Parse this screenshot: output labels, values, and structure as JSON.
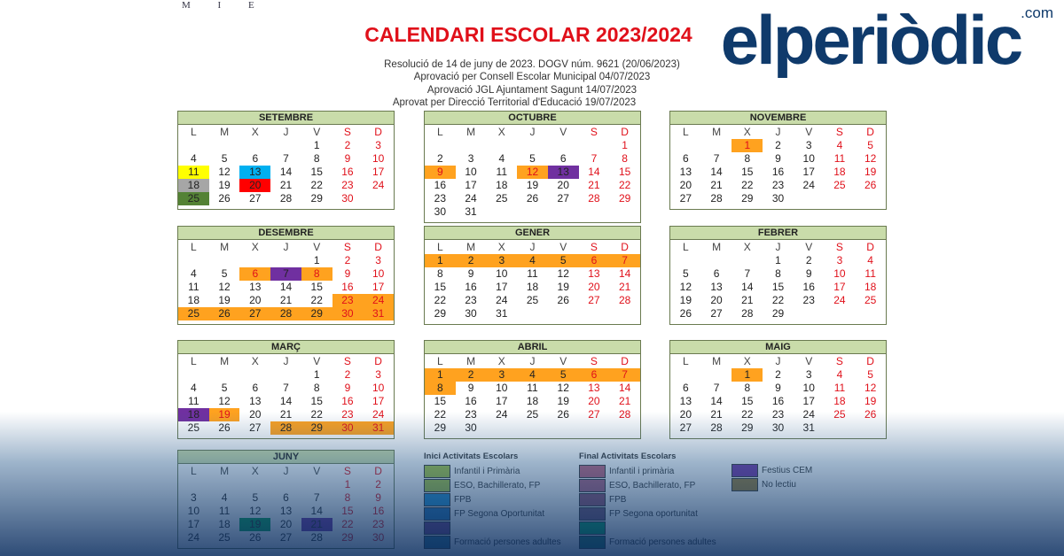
{
  "logo_text": "M I E",
  "title": "CALENDARI ESCOLAR 2023/2024",
  "subtitles": [
    "Resolució de 14 de juny de 2023. DOGV núm. 9621 (20/06/2023)",
    "Aprovació per Consell Escolar Municipal 04/07/2023",
    "Aprovació JGL Ajuntament Sagunt 14/07/2023",
    "Aprovat per  Direcció Territorial d'Educació 19/07/2023"
  ],
  "weekday_letters": [
    "L",
    "M",
    "X",
    "J",
    "V",
    "S",
    "D"
  ],
  "colors": {
    "orange": "#ffa21f",
    "purple": "#7030a0",
    "yellow": "#ffff00",
    "blue": "#00b0f0",
    "gray": "#a6a6a6",
    "red": "#ff0000",
    "green": "#548235",
    "june_green": "#00a050"
  },
  "months": [
    {
      "name": "SETEMBRE",
      "start": 4,
      "days": 30,
      "hl": {
        "11": "yellow",
        "13": "blue",
        "18": "gray",
        "20": "red",
        "25": "green"
      },
      "red": []
    },
    {
      "name": "OCTUBRE",
      "start": 6,
      "days": 31,
      "hl": {
        "9": "orange",
        "12": "orange",
        "13": "purple"
      },
      "red": [
        9,
        12
      ]
    },
    {
      "name": "NOVEMBRE",
      "start": 2,
      "days": 30,
      "hl": {
        "1": "orange"
      },
      "red": [
        1
      ]
    },
    {
      "name": "DESEMBRE",
      "start": 4,
      "days": 31,
      "hl": {
        "6": "orange",
        "7": "purple",
        "8": "orange",
        "23": "orange",
        "24": "orange",
        "25": "orange",
        "26": "orange",
        "27": "orange",
        "28": "orange",
        "29": "orange",
        "30": "orange",
        "31": "orange"
      },
      "red": [
        6,
        8
      ]
    },
    {
      "name": "GENER",
      "start": 0,
      "days": 31,
      "hl": {
        "1": "orange",
        "2": "orange",
        "3": "orange",
        "4": "orange",
        "5": "orange",
        "6": "orange",
        "7": "orange"
      },
      "red": []
    },
    {
      "name": "FEBRER",
      "start": 3,
      "days": 29,
      "hl": {},
      "red": []
    },
    {
      "name": "MARÇ",
      "start": 4,
      "days": 31,
      "hl": {
        "18": "purple",
        "19": "orange",
        "28": "orange",
        "29": "orange",
        "30": "orange",
        "31": "orange"
      },
      "red": [
        19
      ]
    },
    {
      "name": "ABRIL",
      "start": 0,
      "days": 30,
      "hl": {
        "1": "orange",
        "2": "orange",
        "3": "orange",
        "4": "orange",
        "5": "orange",
        "6": "orange",
        "7": "orange",
        "8": "orange"
      },
      "red": []
    },
    {
      "name": "MAIG",
      "start": 2,
      "days": 31,
      "hl": {
        "1": "orange"
      },
      "red": []
    },
    {
      "name": "JUNY",
      "start": 5,
      "days": 30,
      "hl": {
        "19": "june_green",
        "21": "purple"
      },
      "red": []
    }
  ],
  "legend": {
    "inici_title": "Inici Activitats Escolars",
    "inici": [
      {
        "label": "Infantil i Primària",
        "color": "#a8c83a"
      },
      {
        "label": "ESO, Bachillerato, FP",
        "color": "#a8c83a"
      },
      {
        "label": "FPB",
        "color": "#1f8fd0"
      },
      {
        "label": "FP Segona Oportunitat",
        "color": "#1f6fb0"
      },
      {
        "label": "",
        "color": "#6a3a80"
      },
      {
        "label": "Formació persones adultes",
        "color": "#2a6a8a"
      }
    ],
    "final_title": "Final Activitats Escolars",
    "final": [
      {
        "label": "Infantil i primària",
        "color": "#c0607a"
      },
      {
        "label": "ESO, Bachillerato, FP",
        "color": "#b06080"
      },
      {
        "label": "FPB",
        "color": "#905070"
      },
      {
        "label": "FP Segona oportunitat",
        "color": "#705070"
      },
      {
        "label": "",
        "color": "#00a060"
      },
      {
        "label": "Formació persones adultes",
        "color": "#1a7060"
      }
    ],
    "other": [
      {
        "label": "Festius CEM",
        "color": "#7030a0"
      },
      {
        "label": "No lectiu",
        "color": "#9a7a30"
      }
    ]
  },
  "brand": {
    "name": "elperiòdic",
    "suffix": ".com"
  }
}
